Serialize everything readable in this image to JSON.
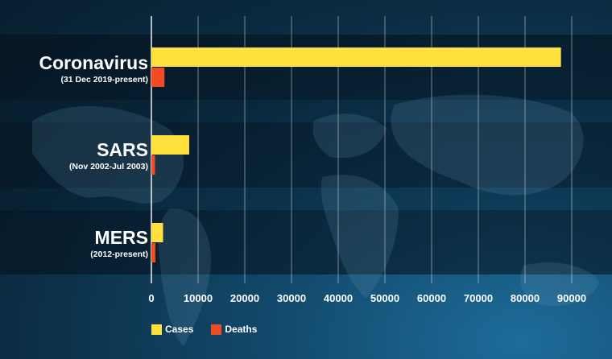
{
  "chart_data": {
    "type": "bar",
    "orientation": "horizontal",
    "categories": [
      "Coronavirus",
      "SARS",
      "MERS"
    ],
    "category_subtitles": [
      "(31 Dec 2019-present)",
      "(Nov 2002-Jul 2003)",
      "(2012-present)"
    ],
    "series": [
      {
        "name": "Cases",
        "color": "#ffe03c",
        "values": [
          87700,
          8100,
          2500
        ]
      },
      {
        "name": "Deaths",
        "color": "#f04b23",
        "values": [
          2800,
          774,
          860
        ]
      }
    ],
    "xlim": [
      0,
      90000
    ],
    "xticks": [
      0,
      10000,
      20000,
      30000,
      40000,
      50000,
      60000,
      70000,
      80000,
      90000
    ],
    "grid": true,
    "legend_position": "bottom-left"
  }
}
